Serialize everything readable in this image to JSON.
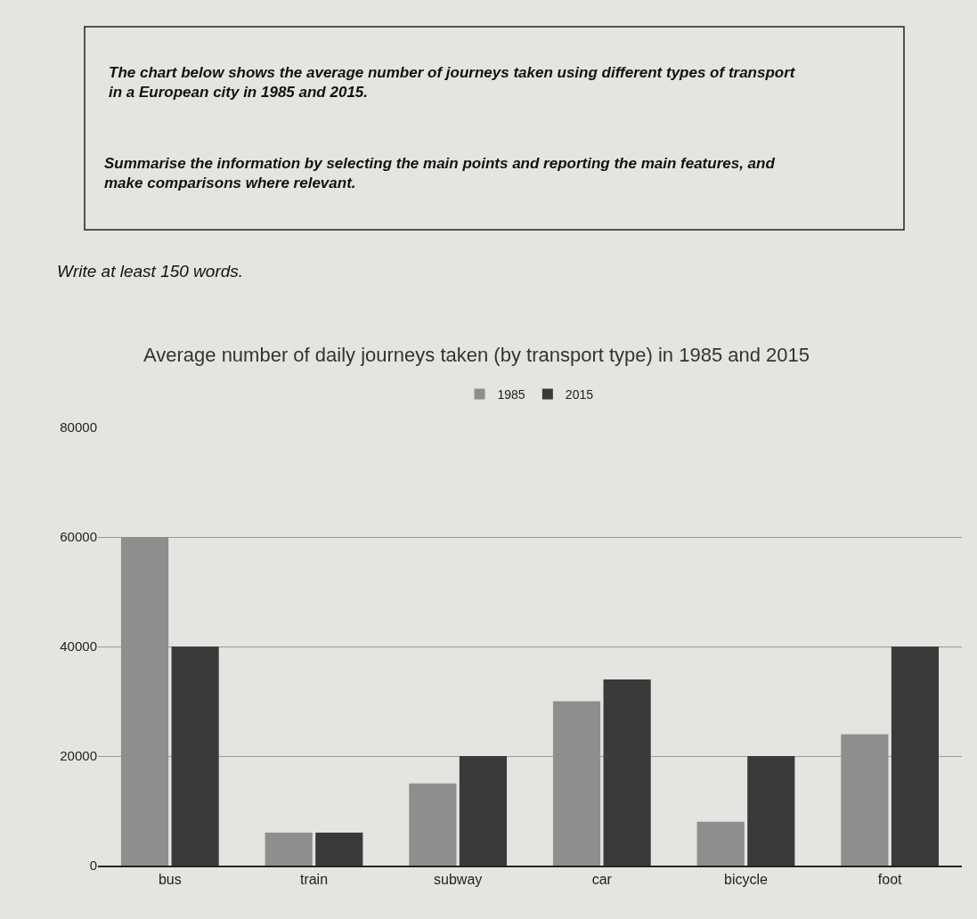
{
  "chart_data": {
    "type": "bar",
    "title": "Average number of daily journeys taken (by transport type) in 1985 and 2015",
    "annotations": [
      "The chart below shows the average number of journeys taken using different types of transport in a European city in 1985 and 2015.",
      "Summarise the information by selecting the main points and reporting the main features, and make comparisons where relevant.",
      "Write at least 150 words."
    ],
    "categories": [
      "bus",
      "train",
      "subway",
      "car",
      "bicycle",
      "foot"
    ],
    "series": [
      {
        "name": "1985",
        "color": "#8e8e8e",
        "values": [
          60000,
          6000,
          15000,
          30000,
          8000,
          24000
        ]
      },
      {
        "name": "2015",
        "color": "#3a3a3a",
        "values": [
          40000,
          6000,
          20000,
          34000,
          20000,
          40000
        ]
      }
    ],
    "ylim": [
      0,
      80000
    ],
    "yticks": [
      0,
      20000,
      40000,
      60000,
      80000
    ],
    "grid": "y",
    "legend": "top"
  }
}
